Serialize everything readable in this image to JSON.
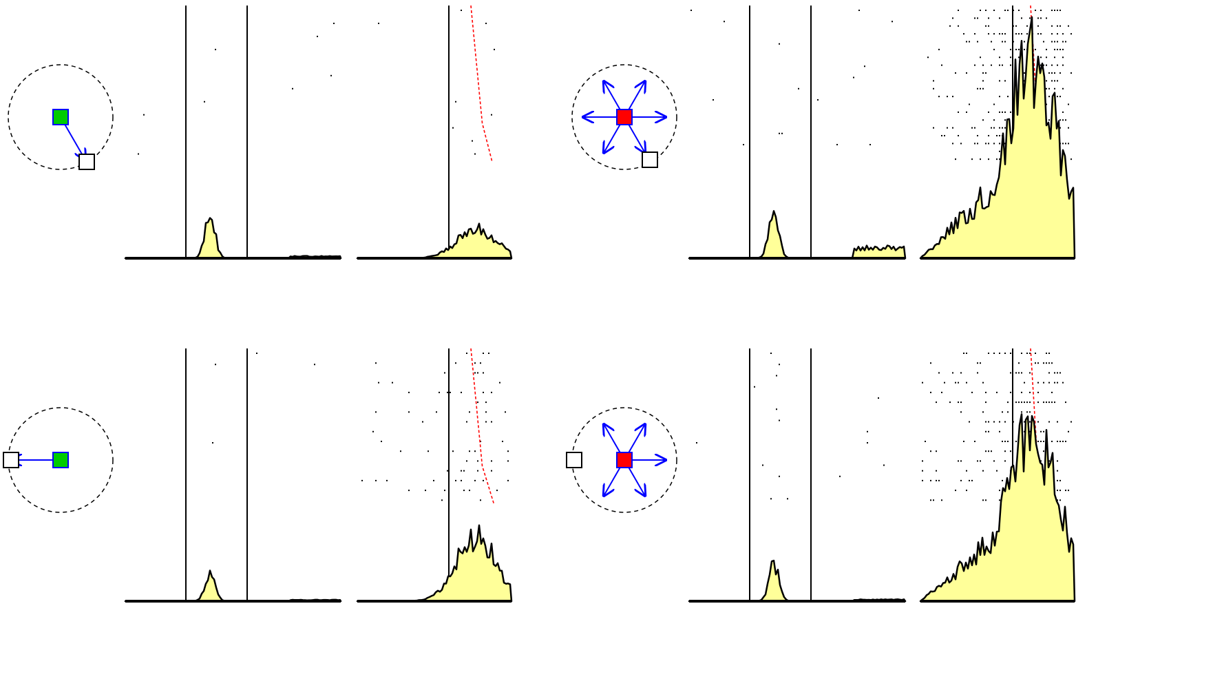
{
  "colors": {
    "background": "#ffffff",
    "histogram_fill": "#ffff99",
    "outline": "#000000",
    "arrow": "#0000ff",
    "target_green": "#00cc00",
    "target_red": "#ff0000",
    "latency_marker": "#ff0000"
  },
  "figure": {
    "rows": [
      {
        "id": "row-top",
        "schematics": [
          {
            "type": "single-direction",
            "center_color": "green",
            "arrows_deg": [
              -60
            ],
            "cue_square": "lower-right"
          },
          {
            "type": "multi-direction",
            "center_color": "red",
            "arrows_deg": [
              0,
              180,
              60,
              120,
              -60,
              -120
            ],
            "cue_square": "lower-right"
          }
        ],
        "panels": [
          {
            "id": "p-top-1",
            "alignment": "two-lines",
            "trials": 12,
            "density": 0.05,
            "hist_peak": 0.11,
            "latency_line": false
          },
          {
            "id": "p-top-2",
            "alignment": "one-line",
            "trials": 12,
            "density": 0.05,
            "hist_peak": 0.07,
            "latency_line": true
          },
          {
            "id": "p-top-3",
            "alignment": "two-lines",
            "trials": 14,
            "density": 0.12,
            "hist_peak": 0.12,
            "latency_line": false
          },
          {
            "id": "p-top-4",
            "alignment": "one-line",
            "trials": 20,
            "density": 0.9,
            "hist_peak": 0.48,
            "latency_line": true
          }
        ]
      },
      {
        "id": "row-bottom",
        "schematics": [
          {
            "type": "single-direction",
            "center_color": "green",
            "arrows_deg": [
              180
            ],
            "cue_square": "left"
          },
          {
            "type": "multi-direction",
            "center_color": "red",
            "arrows_deg": [
              0,
              60,
              120,
              -60,
              -120
            ],
            "cue_square": "left"
          }
        ],
        "panels": [
          {
            "id": "p-bot-1",
            "alignment": "two-lines",
            "trials": 14,
            "density": 0.06,
            "hist_peak": 0.07,
            "latency_line": false
          },
          {
            "id": "p-bot-2",
            "alignment": "one-line",
            "trials": 16,
            "density": 0.3,
            "hist_peak": 0.16,
            "latency_line": true
          },
          {
            "id": "p-bot-3",
            "alignment": "two-lines",
            "trials": 14,
            "density": 0.1,
            "hist_peak": 0.09,
            "latency_line": false
          },
          {
            "id": "p-bot-4",
            "alignment": "one-line",
            "trials": 16,
            "density": 0.85,
            "hist_peak": 0.42,
            "latency_line": true
          }
        ]
      }
    ]
  }
}
